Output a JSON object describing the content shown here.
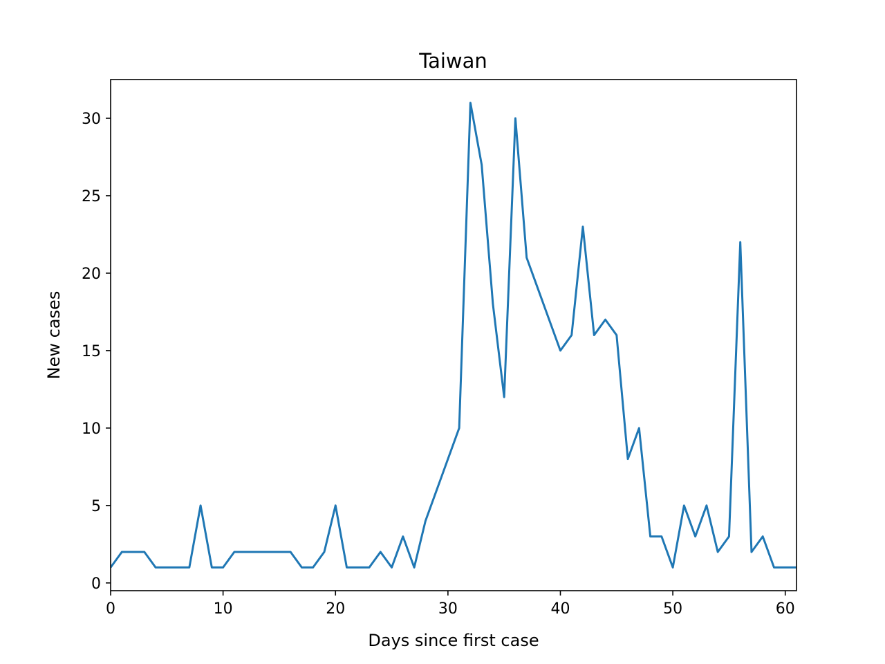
{
  "chart_data": {
    "type": "line",
    "title": "Taiwan",
    "xlabel": "Days since first case",
    "ylabel": "New cases",
    "xlim": [
      0,
      61
    ],
    "ylim": [
      -0.5,
      32.5
    ],
    "xticks": [
      0,
      10,
      20,
      30,
      40,
      50,
      60
    ],
    "yticks": [
      0,
      5,
      10,
      15,
      20,
      25,
      30
    ],
    "grid": false,
    "line_color": "#1f77b4",
    "series": [
      {
        "x": [
          0,
          1,
          2,
          3,
          4,
          5,
          6,
          7,
          8,
          9,
          10,
          11,
          12,
          13,
          14,
          15,
          16,
          17,
          18,
          19,
          20,
          21,
          22,
          23,
          24,
          25,
          26,
          27,
          28,
          29,
          30,
          31,
          32,
          33,
          34,
          35,
          36,
          37,
          38,
          39,
          40,
          41,
          42,
          43,
          44,
          45,
          46,
          47,
          48,
          49,
          50,
          51,
          52,
          53,
          54,
          55,
          56,
          57,
          58,
          59,
          60,
          61
        ],
        "values": [
          1,
          2,
          2,
          2,
          1,
          1,
          1,
          1,
          5,
          1,
          1,
          2,
          2,
          2,
          2,
          2,
          2,
          1,
          1,
          2,
          5,
          1,
          1,
          1,
          2,
          1,
          3,
          1,
          4,
          6,
          8,
          10,
          31,
          27,
          18,
          12,
          30,
          21,
          19,
          17,
          15,
          16,
          23,
          16,
          17,
          16,
          8,
          10,
          3,
          3,
          1,
          5,
          3,
          5,
          2,
          3,
          22,
          2,
          3,
          1,
          1,
          1
        ]
      }
    ]
  }
}
